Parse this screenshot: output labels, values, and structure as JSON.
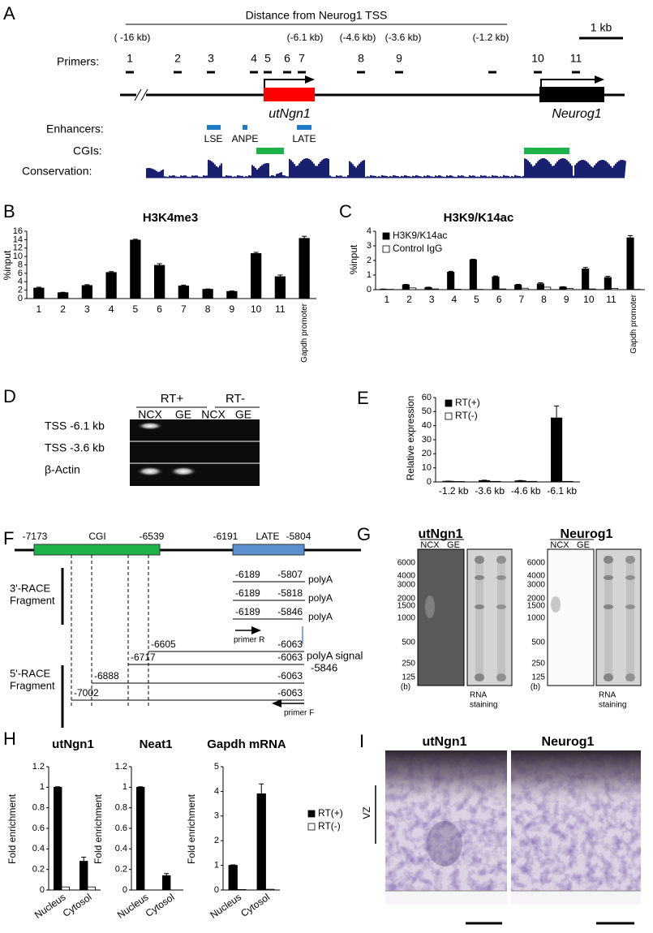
{
  "panel_a": {
    "letter": "A",
    "distance_title": "Distance from Neurog1 TSS",
    "distances": [
      "( -16 kb)",
      "(-6.1 kb)",
      "(-4.6 kb)",
      "(-3.6 kb)",
      "(-1.2 kb)"
    ],
    "scale_bar": "1 kb",
    "primers_label": "Primers:",
    "primers": [
      "1",
      "2",
      "3",
      "4",
      "5",
      "6",
      "7",
      "8",
      "9",
      "10",
      "11"
    ],
    "transcript": "utNgn1",
    "gene": "Neurog1",
    "enhancers_label": "Enhancers:",
    "enhancers": [
      "LSE",
      "ANPE",
      "LATE"
    ],
    "cgis_label": "CGIs:",
    "conservation_label": "Conservation:"
  },
  "chart_letters": [
    "B",
    "C",
    "E",
    "H"
  ],
  "chart_data": [
    {
      "type": "bar",
      "title": "H3K4me3",
      "y_label": "%input",
      "categories": [
        "1",
        "2",
        "3",
        "4",
        "5",
        "6",
        "7",
        "8",
        "9",
        "10",
        "11",
        "Gapdh promoter"
      ],
      "values": [
        2.5,
        1.4,
        3.1,
        6.2,
        13.9,
        7.9,
        3.0,
        2.2,
        1.7,
        10.7,
        5.2,
        14.3
      ],
      "errors": [
        0.2,
        0.1,
        0.2,
        0.2,
        0.2,
        0.4,
        0.2,
        0.1,
        0.1,
        0.3,
        0.4,
        0.5
      ],
      "color": "#000000",
      "ylim": [
        0,
        16
      ],
      "yticks": [
        0,
        2,
        4,
        6,
        8,
        10,
        12,
        14,
        16
      ]
    },
    {
      "type": "bar",
      "title": "H3K9/K14ac",
      "y_label": "%input",
      "categories": [
        "1",
        "2",
        "3",
        "4",
        "5",
        "6",
        "7",
        "8",
        "9",
        "10",
        "11",
        "Gapdh promoter"
      ],
      "series": [
        {
          "name": "H3K9/K14ac",
          "color": "#000000",
          "values": [
            0.03,
            0.33,
            0.15,
            1.2,
            2.05,
            0.88,
            0.32,
            0.4,
            0.18,
            1.42,
            0.83,
            3.55
          ],
          "errors": [
            0.01,
            0.03,
            0.02,
            0.06,
            0.03,
            0.06,
            0.04,
            0.07,
            0.02,
            0.1,
            0.08,
            0.15
          ]
        },
        {
          "name": "Control IgG",
          "color": "#ffffff",
          "values": [
            0.02,
            0.12,
            0.05,
            0.03,
            0.02,
            0.05,
            0.1,
            0.17,
            0.08,
            0.05,
            0.08,
            0.02
          ]
        }
      ],
      "legend": "top-left",
      "ylim": [
        0,
        4
      ],
      "yticks": [
        0,
        1,
        2,
        3,
        4
      ]
    },
    {
      "type": "bar",
      "y_label": "Relative expression",
      "categories": [
        "-1.2 kb",
        "-3.6 kb",
        "-4.6 kb",
        "-6.1 kb"
      ],
      "series": [
        {
          "name": "RT(+)",
          "color": "#000000",
          "values": [
            0.5,
            1.0,
            0.8,
            45.5
          ],
          "errors": [
            0.1,
            0.2,
            0.2,
            8.5
          ]
        },
        {
          "name": "RT(-)",
          "color": "#ffffff",
          "values": [
            0.3,
            0.4,
            0.4,
            0.4
          ]
        }
      ],
      "legend": "top-left",
      "ylim": [
        0,
        60
      ],
      "yticks": [
        0,
        10,
        20,
        30,
        40,
        50,
        60
      ]
    },
    {
      "type": "bar",
      "title": "utNgn1",
      "y_label": "Fold enrichment",
      "categories": [
        "Nucleus",
        "Cytosol"
      ],
      "series": [
        {
          "color": "#000000",
          "values": [
            1,
            0.28
          ],
          "errors": [
            0.005,
            0.04
          ]
        },
        {
          "color": "#ffffff",
          "values": [
            0.03,
            0.03
          ]
        }
      ],
      "ylim": [
        0,
        1.2
      ],
      "yticks": [
        0,
        0.2,
        0.4,
        0.6,
        0.8,
        1,
        1.2
      ]
    },
    {
      "type": "bar",
      "title": "Neat1",
      "y_label": "Fold enrichment",
      "categories": [
        "Nucleus",
        "Cytosol"
      ],
      "series": [
        {
          "color": "#000000",
          "values": [
            1,
            0.14
          ],
          "errors": [
            0.005,
            0.02
          ]
        },
        {
          "color": "#ffffff",
          "values": [
            0,
            0
          ]
        }
      ],
      "ylim": [
        0,
        1.2
      ],
      "yticks": [
        0,
        0.2,
        0.4,
        0.6,
        0.8,
        1,
        1.2
      ]
    },
    {
      "type": "bar",
      "title": "Gapdh mRNA",
      "y_label": "Fold enrichment",
      "categories": [
        "Nucleus",
        "Cytosol"
      ],
      "series": [
        {
          "name": "RT(+)",
          "color": "#000000",
          "values": [
            1,
            3.9
          ],
          "errors": [
            0.02,
            0.4
          ]
        },
        {
          "name": "RT(-)",
          "color": "#ffffff",
          "values": [
            0.02,
            0.03
          ]
        }
      ],
      "legend": "right",
      "ylim": [
        0,
        5
      ],
      "yticks": [
        0,
        1,
        2,
        3,
        4,
        5
      ]
    }
  ],
  "panel_d": {
    "letter": "D",
    "groups": [
      "RT+",
      "RT-"
    ],
    "lanes": [
      "NCX",
      "GE",
      "NCX",
      "GE"
    ],
    "rows": [
      "TSS -6.1 kb",
      "TSS -3.6 kb",
      "β-Actin"
    ]
  },
  "panel_f": {
    "letter": "F",
    "top_labels": [
      "-7173",
      "CGI",
      "-6539",
      "-6191",
      "LATE",
      "-5804"
    ],
    "race3": {
      "label": [
        "3'-RACE",
        "Fragment"
      ],
      "rows": [
        [
          "-6189",
          "-5807",
          "polyA"
        ],
        [
          "-6189",
          "-5818",
          "polyA"
        ],
        [
          "-6189",
          "-5846",
          "polyA"
        ]
      ],
      "primer": "primer R",
      "signal": [
        "polyA signal",
        "-5846"
      ]
    },
    "race5": {
      "label": [
        "5'-RACE",
        "Fragment"
      ],
      "rows": [
        [
          "-6605",
          "-6063"
        ],
        [
          "-6717",
          "-6063"
        ],
        [
          "-6888",
          "-6063"
        ],
        [
          "-7002",
          "-6063"
        ]
      ],
      "primer": "primer F"
    }
  },
  "panel_g": {
    "letter": "G",
    "blots": [
      {
        "title": "utNgn1",
        "lanes": [
          "NCX",
          "GE"
        ],
        "ladder": [
          "6000",
          "4000",
          "3000",
          "2000",
          "1500",
          "1000",
          "500",
          "250",
          "125"
        ],
        "unit": "(b)",
        "stain": [
          "RNA",
          "staining"
        ]
      },
      {
        "title": "Neurog1",
        "lanes": [
          "NCX",
          "GE"
        ],
        "ladder": [
          "6000",
          "4000",
          "3000",
          "2000",
          "1500",
          "1000",
          "500",
          "250",
          "125"
        ],
        "unit": "(b)",
        "stain": [
          "RNA",
          "staining"
        ]
      }
    ]
  },
  "panel_i": {
    "letter": "I",
    "images": [
      "utNgn1",
      "Neurog1"
    ],
    "zone": "VZ"
  }
}
